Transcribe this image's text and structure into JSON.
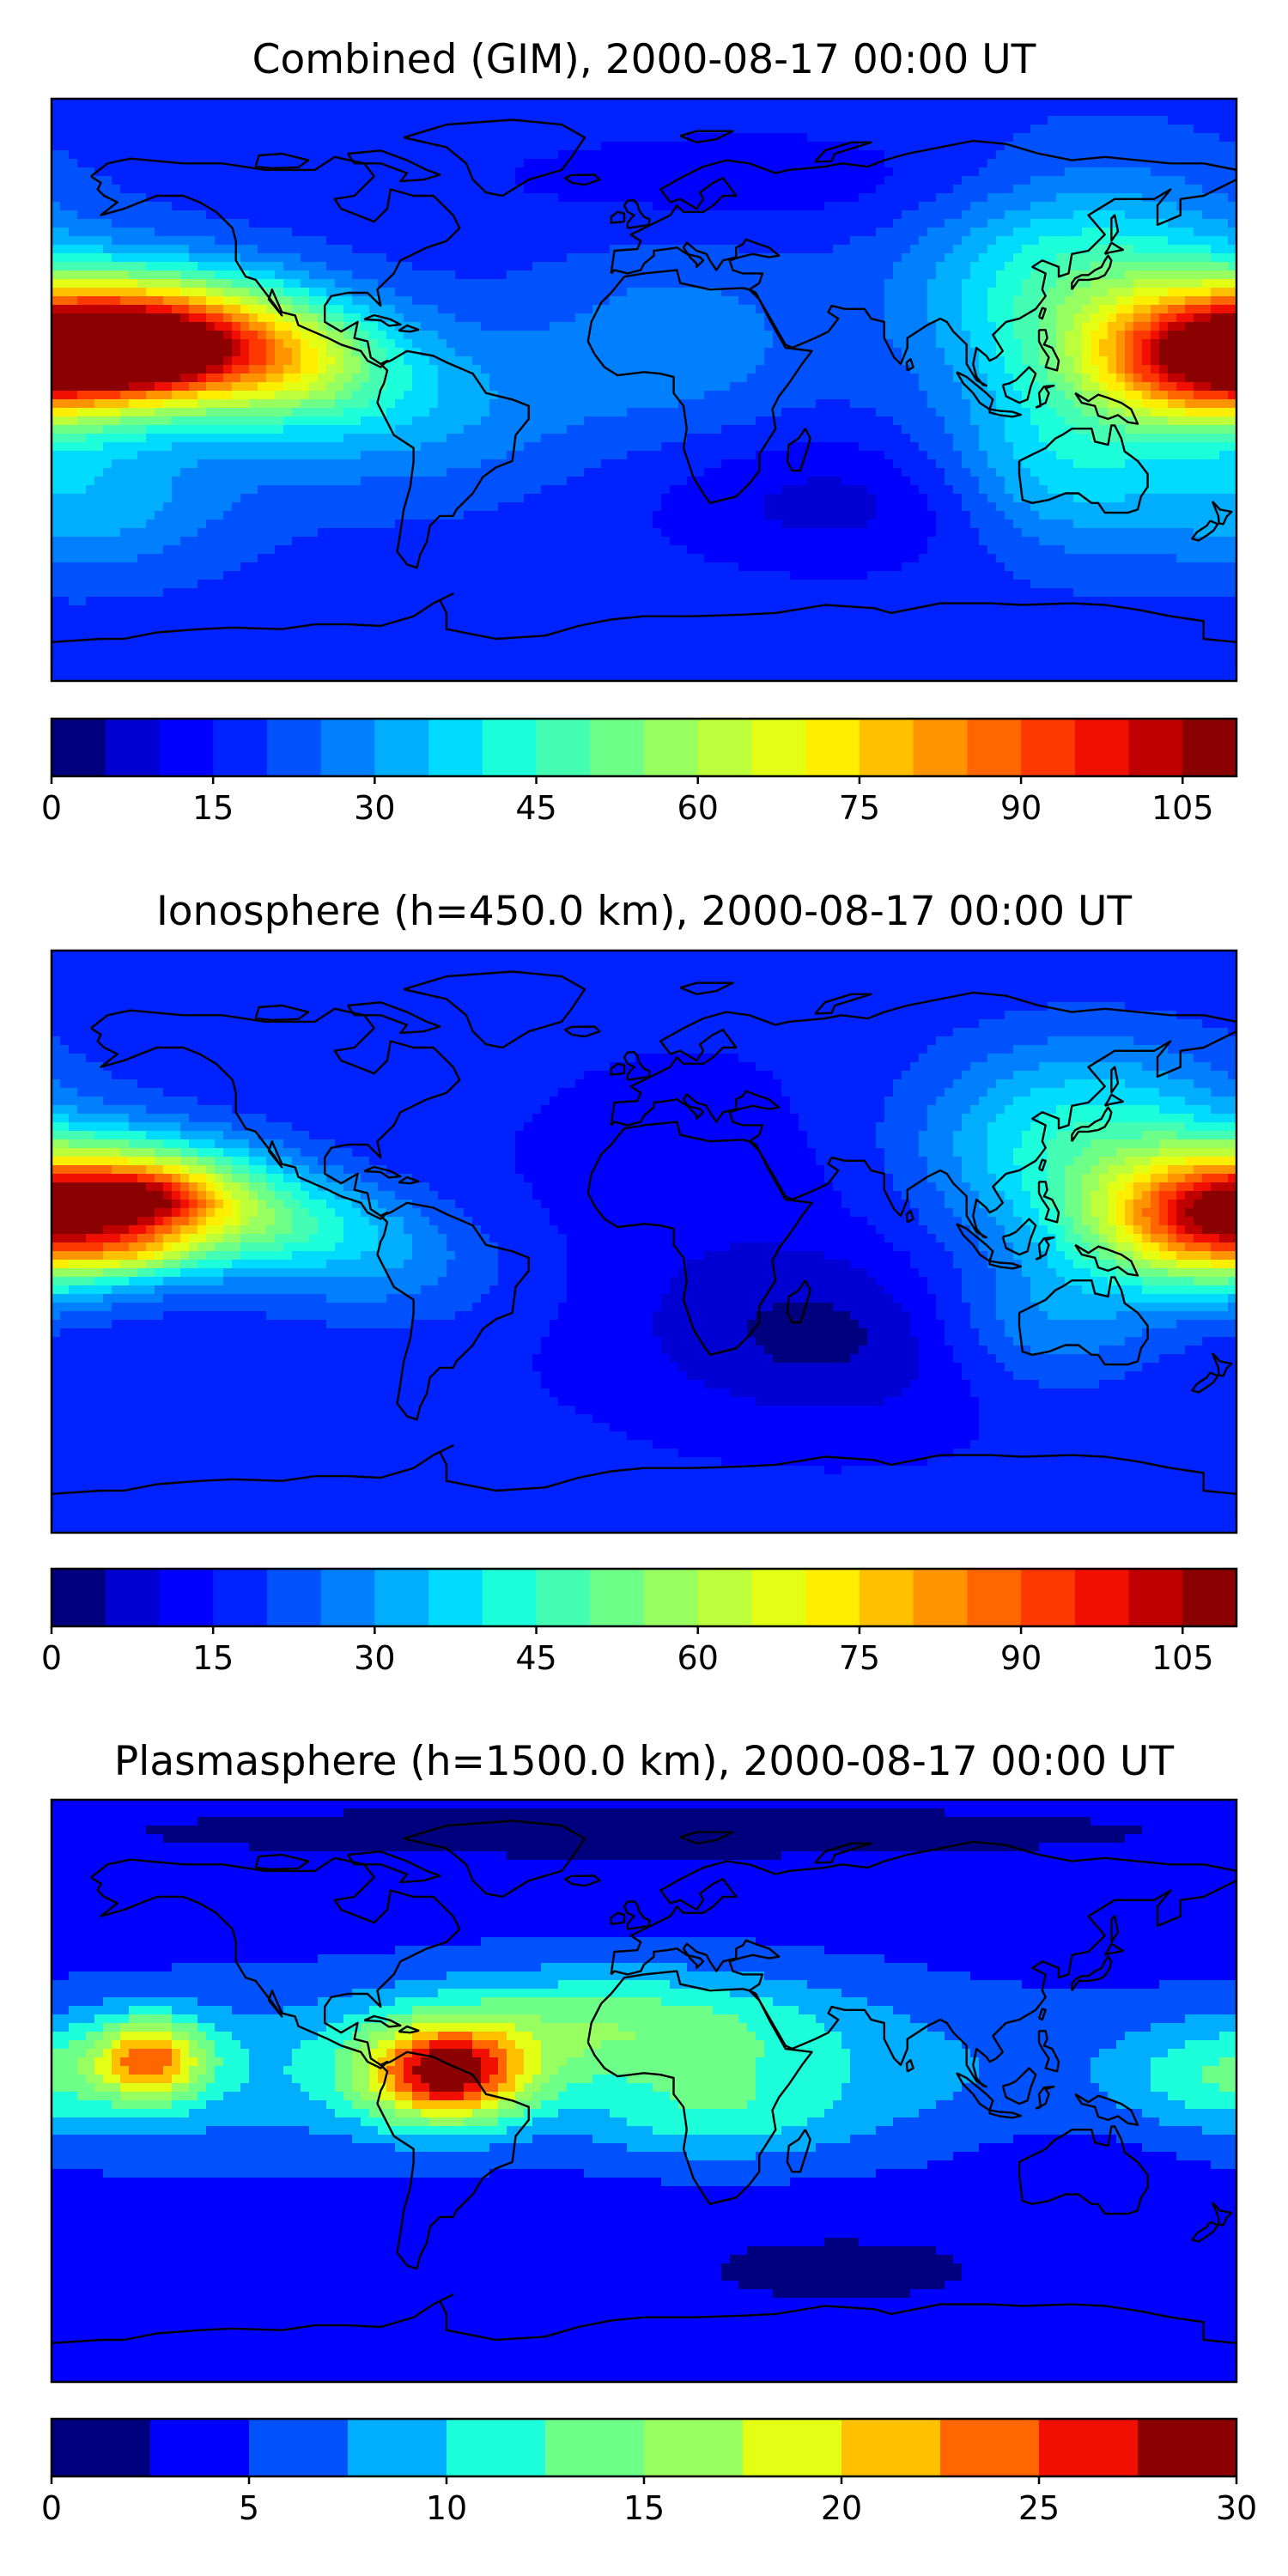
{
  "panels": [
    {
      "id": "combined",
      "title": "Combined (GIM), 2000-08-17 00:00 UT",
      "colorbar": {
        "min": 0,
        "max": 110,
        "step": 5,
        "tick_values": [
          0,
          15,
          30,
          45,
          60,
          75,
          90,
          105
        ],
        "tick_labels": [
          "0",
          "15",
          "30",
          "45",
          "60",
          "75",
          "90",
          "105"
        ]
      },
      "field": {
        "background": 18,
        "blobs": [
          {
            "lon": -150,
            "lat": 15,
            "slon": 32,
            "slat": 14,
            "amp": 88
          },
          {
            "lon": -155,
            "lat": 10,
            "slon": 14,
            "slat": 6,
            "amp": 25
          },
          {
            "lon": -105,
            "lat": 8,
            "slon": 22,
            "slat": 12,
            "amp": 20
          },
          {
            "lon": -80,
            "lat": -5,
            "slon": 40,
            "slat": 18,
            "amp": 15
          },
          {
            "lon": 170,
            "lat": 8,
            "slon": 25,
            "slat": 14,
            "amp": 55
          },
          {
            "lon": 135,
            "lat": 30,
            "slon": 35,
            "slat": 25,
            "amp": 30
          },
          {
            "lon": 125,
            "lat": -25,
            "slon": 25,
            "slat": 18,
            "amp": 18
          },
          {
            "lon": -170,
            "lat": -35,
            "slon": 30,
            "slat": 15,
            "amp": 15
          },
          {
            "lon": 60,
            "lat": -35,
            "slon": 40,
            "slat": 15,
            "amp": -10
          },
          {
            "lon": 40,
            "lat": 65,
            "slon": 70,
            "slat": 12,
            "amp": -6
          },
          {
            "lon": 10,
            "lat": 15,
            "slon": 30,
            "slat": 20,
            "amp": 10
          }
        ]
      }
    },
    {
      "id": "ionosphere",
      "title": "Ionosphere  (h=450.0 km), 2000-08-17 00:00 UT",
      "colorbar": {
        "min": 0,
        "max": 110,
        "step": 5,
        "tick_values": [
          0,
          15,
          30,
          45,
          60,
          75,
          90,
          105
        ],
        "tick_labels": [
          "0",
          "15",
          "30",
          "45",
          "60",
          "75",
          "90",
          "105"
        ]
      },
      "field": {
        "background": 16,
        "blobs": [
          {
            "lon": -155,
            "lat": 12,
            "slon": 30,
            "slat": 13,
            "amp": 68
          },
          {
            "lon": -150,
            "lat": 14,
            "slon": 12,
            "slat": 5,
            "amp": 15
          },
          {
            "lon": -155,
            "lat": -4,
            "slon": 12,
            "slat": 4,
            "amp": 10
          },
          {
            "lon": -100,
            "lat": 5,
            "slon": 25,
            "slat": 10,
            "amp": 15
          },
          {
            "lon": -80,
            "lat": -10,
            "slon": 30,
            "slat": 12,
            "amp": 10
          },
          {
            "lon": 170,
            "lat": 5,
            "slon": 25,
            "slat": 14,
            "amp": 52
          },
          {
            "lon": 135,
            "lat": 30,
            "slon": 35,
            "slat": 22,
            "amp": 28
          },
          {
            "lon": 120,
            "lat": -25,
            "slon": 25,
            "slat": 15,
            "amp": 15
          },
          {
            "lon": 60,
            "lat": -30,
            "slon": 40,
            "slat": 18,
            "amp": -12
          },
          {
            "lon": 20,
            "lat": 10,
            "slon": 40,
            "slat": 30,
            "amp": -4
          }
        ]
      }
    },
    {
      "id": "plasmasphere",
      "title": "Plasmasphere (h=1500.0 km), 2000-08-17 00:00 UT",
      "colorbar": {
        "min": 0,
        "max": 30,
        "step": 2.5,
        "tick_values": [
          0,
          5,
          10,
          15,
          20,
          25,
          30
        ],
        "tick_labels": [
          "0",
          "5",
          "10",
          "15",
          "20",
          "25",
          "30"
        ]
      },
      "field": {
        "background": 4,
        "blobs": [
          {
            "lon": -60,
            "lat": 5,
            "slon": 18,
            "slat": 11,
            "amp": 21
          },
          {
            "lon": -150,
            "lat": 10,
            "slon": 12,
            "slat": 9,
            "amp": 15
          },
          {
            "lon": -120,
            "lat": 5,
            "slon": 50,
            "slat": 18,
            "amp": 5
          },
          {
            "lon": -10,
            "lat": 20,
            "slon": 45,
            "slat": 13,
            "amp": 9
          },
          {
            "lon": 20,
            "lat": -8,
            "slon": 28,
            "slat": 10,
            "amp": 5
          },
          {
            "lon": 60,
            "lat": 5,
            "slon": 60,
            "slat": 18,
            "amp": 4
          },
          {
            "lon": 175,
            "lat": 5,
            "slon": 22,
            "slat": 12,
            "amp": 6
          },
          {
            "lon": 0,
            "lat": 80,
            "slon": 200,
            "slat": 10,
            "amp": -2
          },
          {
            "lon": 60,
            "lat": -55,
            "slon": 50,
            "slat": 12,
            "amp": -2
          },
          {
            "lon": 130,
            "lat": -20,
            "slon": 25,
            "slat": 10,
            "amp": -1
          }
        ]
      }
    }
  ],
  "palette": [
    "#00007f",
    "#0000d2",
    "#0000ff",
    "#0022ff",
    "#0052ff",
    "#0080ff",
    "#00adff",
    "#00dbff",
    "#1dffda",
    "#44ffb3",
    "#6eff89",
    "#97ff60",
    "#bdff3a",
    "#e3ff14",
    "#ffee00",
    "#ffc000",
    "#ff9300",
    "#ff6600",
    "#ff3800",
    "#f00f00",
    "#c00000",
    "#8b0000"
  ],
  "coastline_color": "#000000"
}
